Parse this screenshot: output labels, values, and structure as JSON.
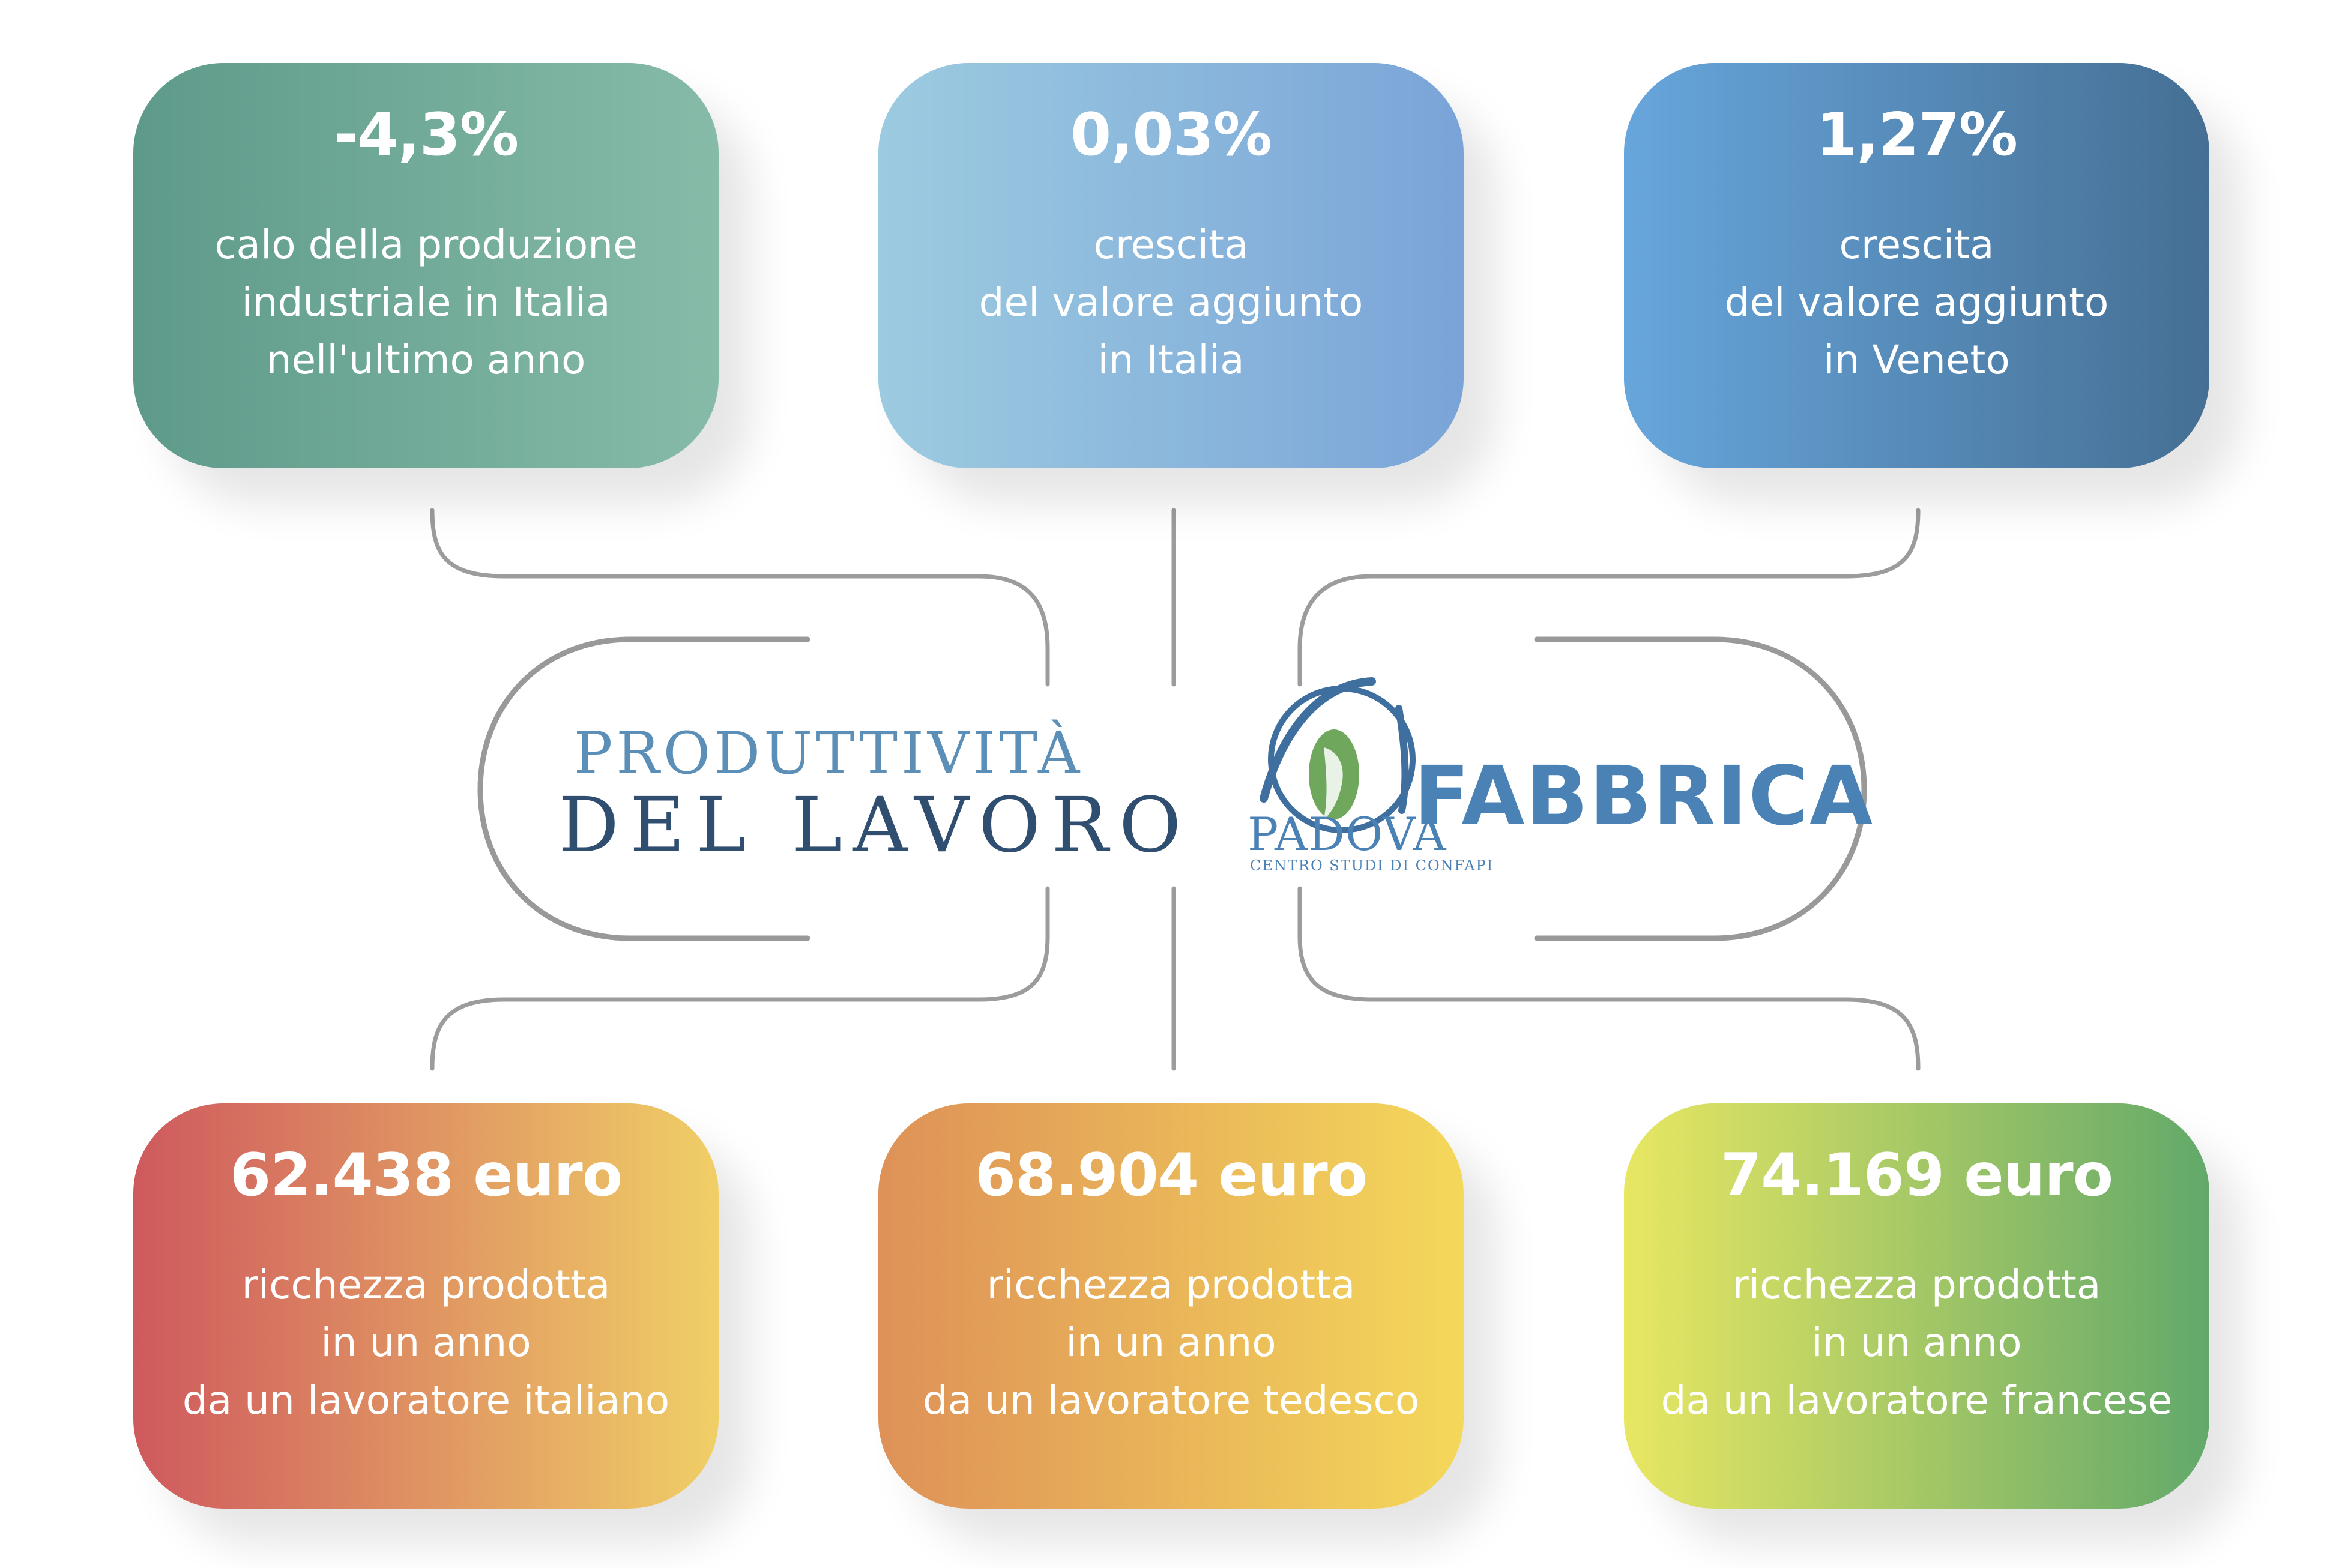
{
  "center": {
    "left_logo": {
      "line1": "PRODUTTIVITÀ",
      "line2": "DEL LAVORO"
    },
    "right_logo": {
      "word": "FABBRICA",
      "city": "PADOVA",
      "subtitle": "CENTRO STUDI DI CONFAPI"
    }
  },
  "cards": [
    {
      "value": "-4,3%",
      "lines": [
        "calo della produzione",
        "industriale in Italia",
        "nell'ultimo anno"
      ],
      "gradient": [
        "#5e9a8a",
        "#86bba8"
      ]
    },
    {
      "value": "0,03%",
      "lines": [
        "crescita",
        "del valore aggiunto",
        "in Italia"
      ],
      "gradient": [
        "#9ccbe0",
        "#7aa4d8"
      ]
    },
    {
      "value": "1,27%",
      "lines": [
        "crescita",
        "del valore aggiunto",
        "in Veneto"
      ],
      "gradient": [
        "#67a6dc",
        "#456f94"
      ]
    },
    {
      "value": "62.438 euro",
      "lines": [
        "ricchezza prodotta",
        "in un anno",
        "da un lavoratore italiano"
      ],
      "gradient": [
        "#cf595e",
        "#f0cf66"
      ]
    },
    {
      "value": "68.904 euro",
      "lines": [
        "ricchezza prodotta",
        "in un anno",
        "da un lavoratore tedesco"
      ],
      "gradient": [
        "#de9158",
        "#f4d85a"
      ]
    },
    {
      "value": "74.169 euro",
      "lines": [
        "ricchezza prodotta",
        "in un anno",
        "da un lavoratore francese"
      ],
      "gradient": [
        "#e8e762",
        "#62a96a"
      ]
    }
  ],
  "colors": {
    "connector": "#9a9a9a",
    "pill": "#999999"
  }
}
